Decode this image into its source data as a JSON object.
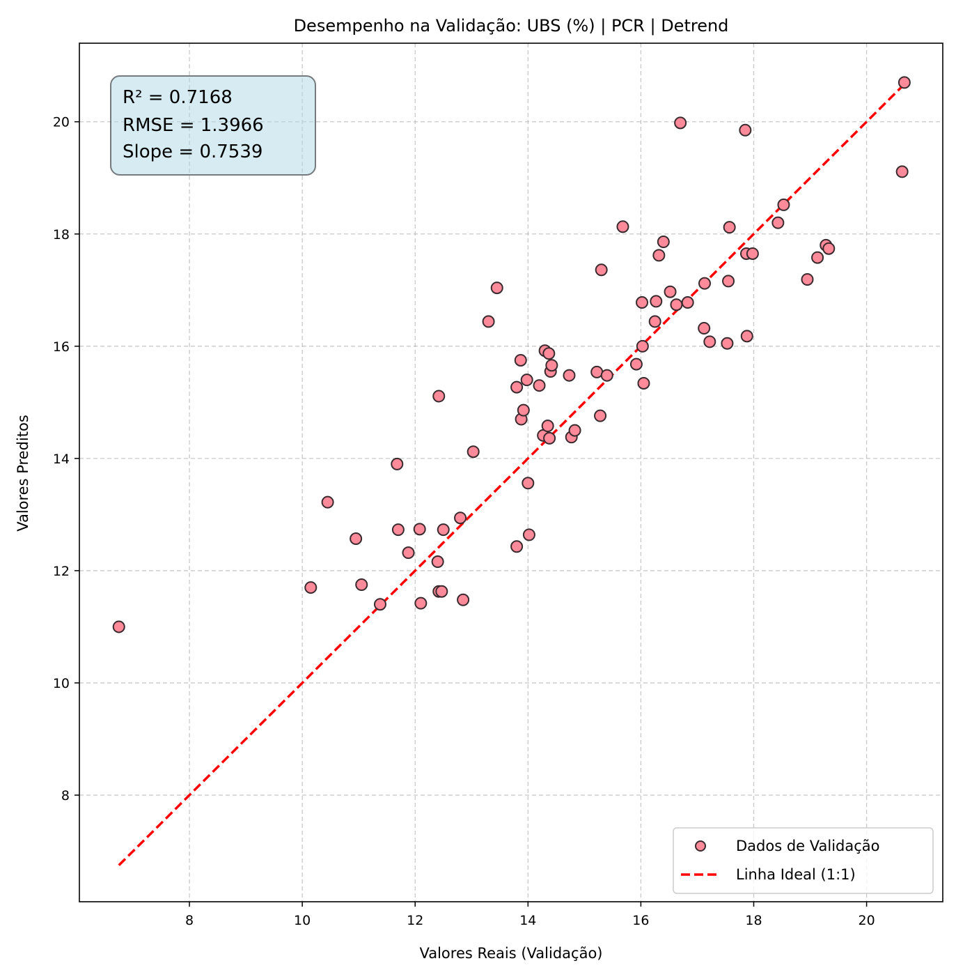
{
  "chart_data": {
    "type": "scatter",
    "title": "Desempenho na Validação: UBS (%) | PCR | Detrend",
    "xlabel": "Valores Reais (Validação)",
    "ylabel": "Valores Preditos",
    "xlim": [
      6.05,
      21.35
    ],
    "ylim": [
      6.1,
      21.4
    ],
    "xticks": [
      8,
      10,
      12,
      14,
      16,
      18,
      20
    ],
    "yticks": [
      8,
      10,
      12,
      14,
      16,
      18,
      20
    ],
    "xtick_labels": [
      "8",
      "10",
      "12",
      "14",
      "16",
      "18",
      "20"
    ],
    "ytick_labels": [
      "8",
      "10",
      "12",
      "14",
      "16",
      "18",
      "20"
    ],
    "grid": true,
    "legend_position": "lower-right",
    "stats": {
      "r2": "R² = 0.7168",
      "rmse": "RMSE = 1.3966",
      "slope": "Slope = 0.7539"
    },
    "series": [
      {
        "name": "Dados de Validação",
        "kind": "scatter",
        "color": "#ff8a9a",
        "edge_color": "#3a2a2e",
        "points": [
          [
            6.75,
            11.0
          ],
          [
            10.15,
            11.7
          ],
          [
            10.45,
            13.22
          ],
          [
            10.95,
            12.57
          ],
          [
            11.05,
            11.75
          ],
          [
            11.38,
            11.4
          ],
          [
            11.68,
            13.9
          ],
          [
            11.7,
            12.73
          ],
          [
            11.88,
            12.32
          ],
          [
            12.08,
            12.74
          ],
          [
            12.1,
            11.42
          ],
          [
            12.4,
            12.16
          ],
          [
            12.42,
            11.63
          ],
          [
            12.42,
            15.11
          ],
          [
            12.47,
            11.63
          ],
          [
            12.5,
            12.73
          ],
          [
            12.8,
            12.94
          ],
          [
            12.85,
            11.48
          ],
          [
            13.03,
            14.12
          ],
          [
            13.3,
            16.44
          ],
          [
            13.45,
            17.04
          ],
          [
            13.8,
            12.43
          ],
          [
            13.8,
            15.27
          ],
          [
            13.87,
            15.75
          ],
          [
            13.88,
            14.7
          ],
          [
            13.92,
            14.86
          ],
          [
            13.98,
            15.4
          ],
          [
            14.0,
            13.56
          ],
          [
            14.02,
            12.64
          ],
          [
            14.2,
            15.3
          ],
          [
            14.27,
            14.41
          ],
          [
            14.3,
            15.92
          ],
          [
            14.35,
            14.58
          ],
          [
            14.37,
            15.87
          ],
          [
            14.38,
            14.36
          ],
          [
            14.4,
            15.55
          ],
          [
            14.42,
            15.66
          ],
          [
            14.73,
            15.48
          ],
          [
            14.77,
            14.38
          ],
          [
            14.83,
            14.5
          ],
          [
            15.22,
            15.54
          ],
          [
            15.28,
            14.76
          ],
          [
            15.3,
            17.36
          ],
          [
            15.4,
            15.48
          ],
          [
            15.68,
            18.13
          ],
          [
            15.92,
            15.68
          ],
          [
            16.02,
            16.78
          ],
          [
            16.03,
            16.0
          ],
          [
            16.05,
            15.34
          ],
          [
            16.25,
            16.44
          ],
          [
            16.27,
            16.8
          ],
          [
            16.32,
            17.62
          ],
          [
            16.4,
            17.86
          ],
          [
            16.52,
            16.97
          ],
          [
            16.63,
            16.74
          ],
          [
            16.7,
            19.98
          ],
          [
            16.83,
            16.78
          ],
          [
            17.12,
            16.32
          ],
          [
            17.13,
            17.12
          ],
          [
            17.22,
            16.08
          ],
          [
            17.53,
            16.05
          ],
          [
            17.55,
            17.16
          ],
          [
            17.57,
            18.12
          ],
          [
            17.85,
            19.85
          ],
          [
            17.87,
            17.65
          ],
          [
            17.88,
            16.18
          ],
          [
            17.98,
            17.65
          ],
          [
            18.43,
            18.2
          ],
          [
            18.53,
            18.52
          ],
          [
            18.95,
            17.19
          ],
          [
            19.13,
            17.58
          ],
          [
            19.28,
            17.8
          ],
          [
            19.33,
            17.74
          ],
          [
            20.63,
            19.11
          ],
          [
            20.67,
            20.7
          ]
        ]
      },
      {
        "name": "Linha Ideal (1:1)",
        "kind": "line",
        "color": "#ff0000",
        "dash": true,
        "points": [
          [
            6.75,
            6.75
          ],
          [
            20.67,
            20.67
          ]
        ]
      }
    ]
  }
}
